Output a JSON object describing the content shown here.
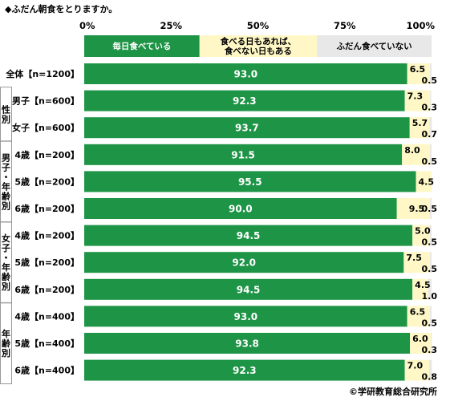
{
  "chart_data": {
    "type": "bar",
    "orientation": "horizontal",
    "stacked": true,
    "title": "◆ふだん朝食をとりますか。",
    "x_ticks": [
      "0%",
      "25%",
      "50%",
      "75%",
      "100%"
    ],
    "xlim": [
      0,
      100
    ],
    "legend_position": "top",
    "series": [
      {
        "name": "毎日食べている",
        "color": "#1e9446",
        "values": [
          93.0,
          92.3,
          93.7,
          91.5,
          95.5,
          90.0,
          94.5,
          92.0,
          94.5,
          93.0,
          93.8,
          92.3
        ]
      },
      {
        "name": "食べる日もあれば、食べない日もある",
        "color": "#fff8c6",
        "values": [
          6.5,
          7.3,
          5.7,
          8.0,
          4.5,
          9.5,
          5.0,
          7.5,
          4.5,
          6.5,
          6.0,
          7.0
        ]
      },
      {
        "name": "ふだん食べていない",
        "color": "#e8e8e8",
        "values": [
          0.5,
          0.3,
          0.7,
          0.5,
          0.0,
          0.5,
          0.5,
          0.5,
          1.0,
          0.5,
          0.3,
          0.8
        ]
      }
    ],
    "value_labels": {
      "s1": [
        "93.0",
        "92.3",
        "93.7",
        "91.5",
        "95.5",
        "90.0",
        "94.5",
        "92.0",
        "94.5",
        "93.0",
        "93.8",
        "92.3"
      ],
      "s2": [
        "6.5",
        "7.3",
        "5.7",
        "8.0",
        "4.5",
        "9.5",
        "5.0",
        "7.5",
        "4.5",
        "6.5",
        "6.0",
        "7.0"
      ],
      "s3": [
        "0.5",
        "0.3",
        "0.7",
        "0.5",
        "",
        "0.5",
        "0.5",
        "0.5",
        "1.0",
        "0.5",
        "0.3",
        "0.8"
      ]
    },
    "categories": [
      "全体【n=1200】",
      "男子【n=600】",
      "女子【n=600】",
      "4歳【n=200】",
      "5歳【n=200】",
      "6歳【n=200】",
      "4歳【n=200】",
      "5歳【n=200】",
      "6歳【n=200】",
      "4歳【n=400】",
      "5歳【n=400】",
      "6歳【n=400】"
    ],
    "groups": [
      {
        "label": "性別",
        "rows": [
          1,
          2
        ]
      },
      {
        "label": "男子・年齢別",
        "rows": [
          3,
          5
        ]
      },
      {
        "label": "女子・年齢別",
        "rows": [
          6,
          8
        ]
      },
      {
        "label": "年齢別",
        "rows": [
          9,
          11
        ]
      }
    ],
    "credit": "©学研教育総合研究所"
  }
}
